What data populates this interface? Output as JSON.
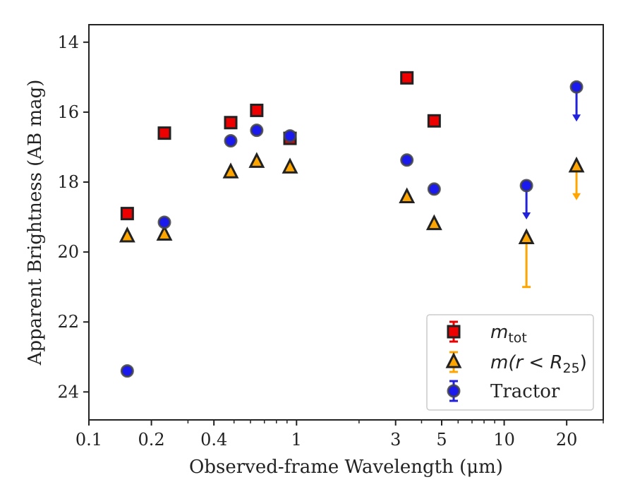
{
  "chart_data": {
    "type": "scatter",
    "xlabel": "Observed-frame Wavelength (μm)",
    "ylabel": "Apparent Brightness (AB mag)",
    "xscale": "log",
    "xlim": [
      0.1,
      30
    ],
    "ylim": [
      24.8,
      13.5
    ],
    "y_inverted": true,
    "xticks": [
      {
        "value": 0.1,
        "label": "0.1"
      },
      {
        "value": 0.2,
        "label": "0.2"
      },
      {
        "value": 0.4,
        "label": "0.4"
      },
      {
        "value": 1,
        "label": "1"
      },
      {
        "value": 3,
        "label": "3"
      },
      {
        "value": 5,
        "label": "5"
      },
      {
        "value": 10,
        "label": "10"
      },
      {
        "value": 20,
        "label": "20"
      }
    ],
    "yticks": [
      {
        "value": 14,
        "label": "14"
      },
      {
        "value": 16,
        "label": "16"
      },
      {
        "value": 18,
        "label": "18"
      },
      {
        "value": 20,
        "label": "20"
      },
      {
        "value": 22,
        "label": "22"
      },
      {
        "value": 24,
        "label": "24"
      }
    ],
    "grid": false,
    "legend_position": "lower-right",
    "series": [
      {
        "name": "m_tot",
        "label_base": "m",
        "label_sub": "tot",
        "marker": "square",
        "color": "#ee0000",
        "errcolor": "#ee0000",
        "points": [
          {
            "x": 0.153,
            "y": 18.9
          },
          {
            "x": 0.231,
            "y": 16.6
          },
          {
            "x": 0.482,
            "y": 16.3
          },
          {
            "x": 0.643,
            "y": 15.95
          },
          {
            "x": 0.93,
            "y": 16.75
          },
          {
            "x": 3.4,
            "y": 15.02
          },
          {
            "x": 4.6,
            "y": 16.25
          }
        ]
      },
      {
        "name": "m(r < R_25)",
        "label_pre": "m(r < R",
        "label_sub": "25",
        "label_post": ")",
        "marker": "triangle",
        "color": "#ffa500",
        "errcolor": "#ffa500",
        "points": [
          {
            "x": 0.153,
            "y": 19.55
          },
          {
            "x": 0.231,
            "y": 19.5
          },
          {
            "x": 0.482,
            "y": 17.72
          },
          {
            "x": 0.643,
            "y": 17.42
          },
          {
            "x": 0.93,
            "y": 17.58
          },
          {
            "x": 3.4,
            "y": 18.43
          },
          {
            "x": 4.6,
            "y": 19.2
          },
          {
            "x": 12.8,
            "y": 19.6,
            "yerr_low": 21.0
          },
          {
            "x": 22.3,
            "y": 17.55,
            "upper_limit": true,
            "arrow_to": 18.5
          }
        ]
      },
      {
        "name": "Tractor",
        "marker": "circle",
        "color": "#1a1aee",
        "errcolor": "#2222dd",
        "points": [
          {
            "x": 0.153,
            "y": 23.4
          },
          {
            "x": 0.231,
            "y": 19.15
          },
          {
            "x": 0.482,
            "y": 16.82
          },
          {
            "x": 0.643,
            "y": 16.52
          },
          {
            "x": 0.93,
            "y": 16.68
          },
          {
            "x": 3.4,
            "y": 17.37
          },
          {
            "x": 4.6,
            "y": 18.2
          },
          {
            "x": 12.8,
            "y": 18.1,
            "upper_limit": true,
            "arrow_to": 19.05
          },
          {
            "x": 22.3,
            "y": 15.28,
            "upper_limit": true,
            "arrow_to": 16.25
          }
        ]
      }
    ]
  }
}
